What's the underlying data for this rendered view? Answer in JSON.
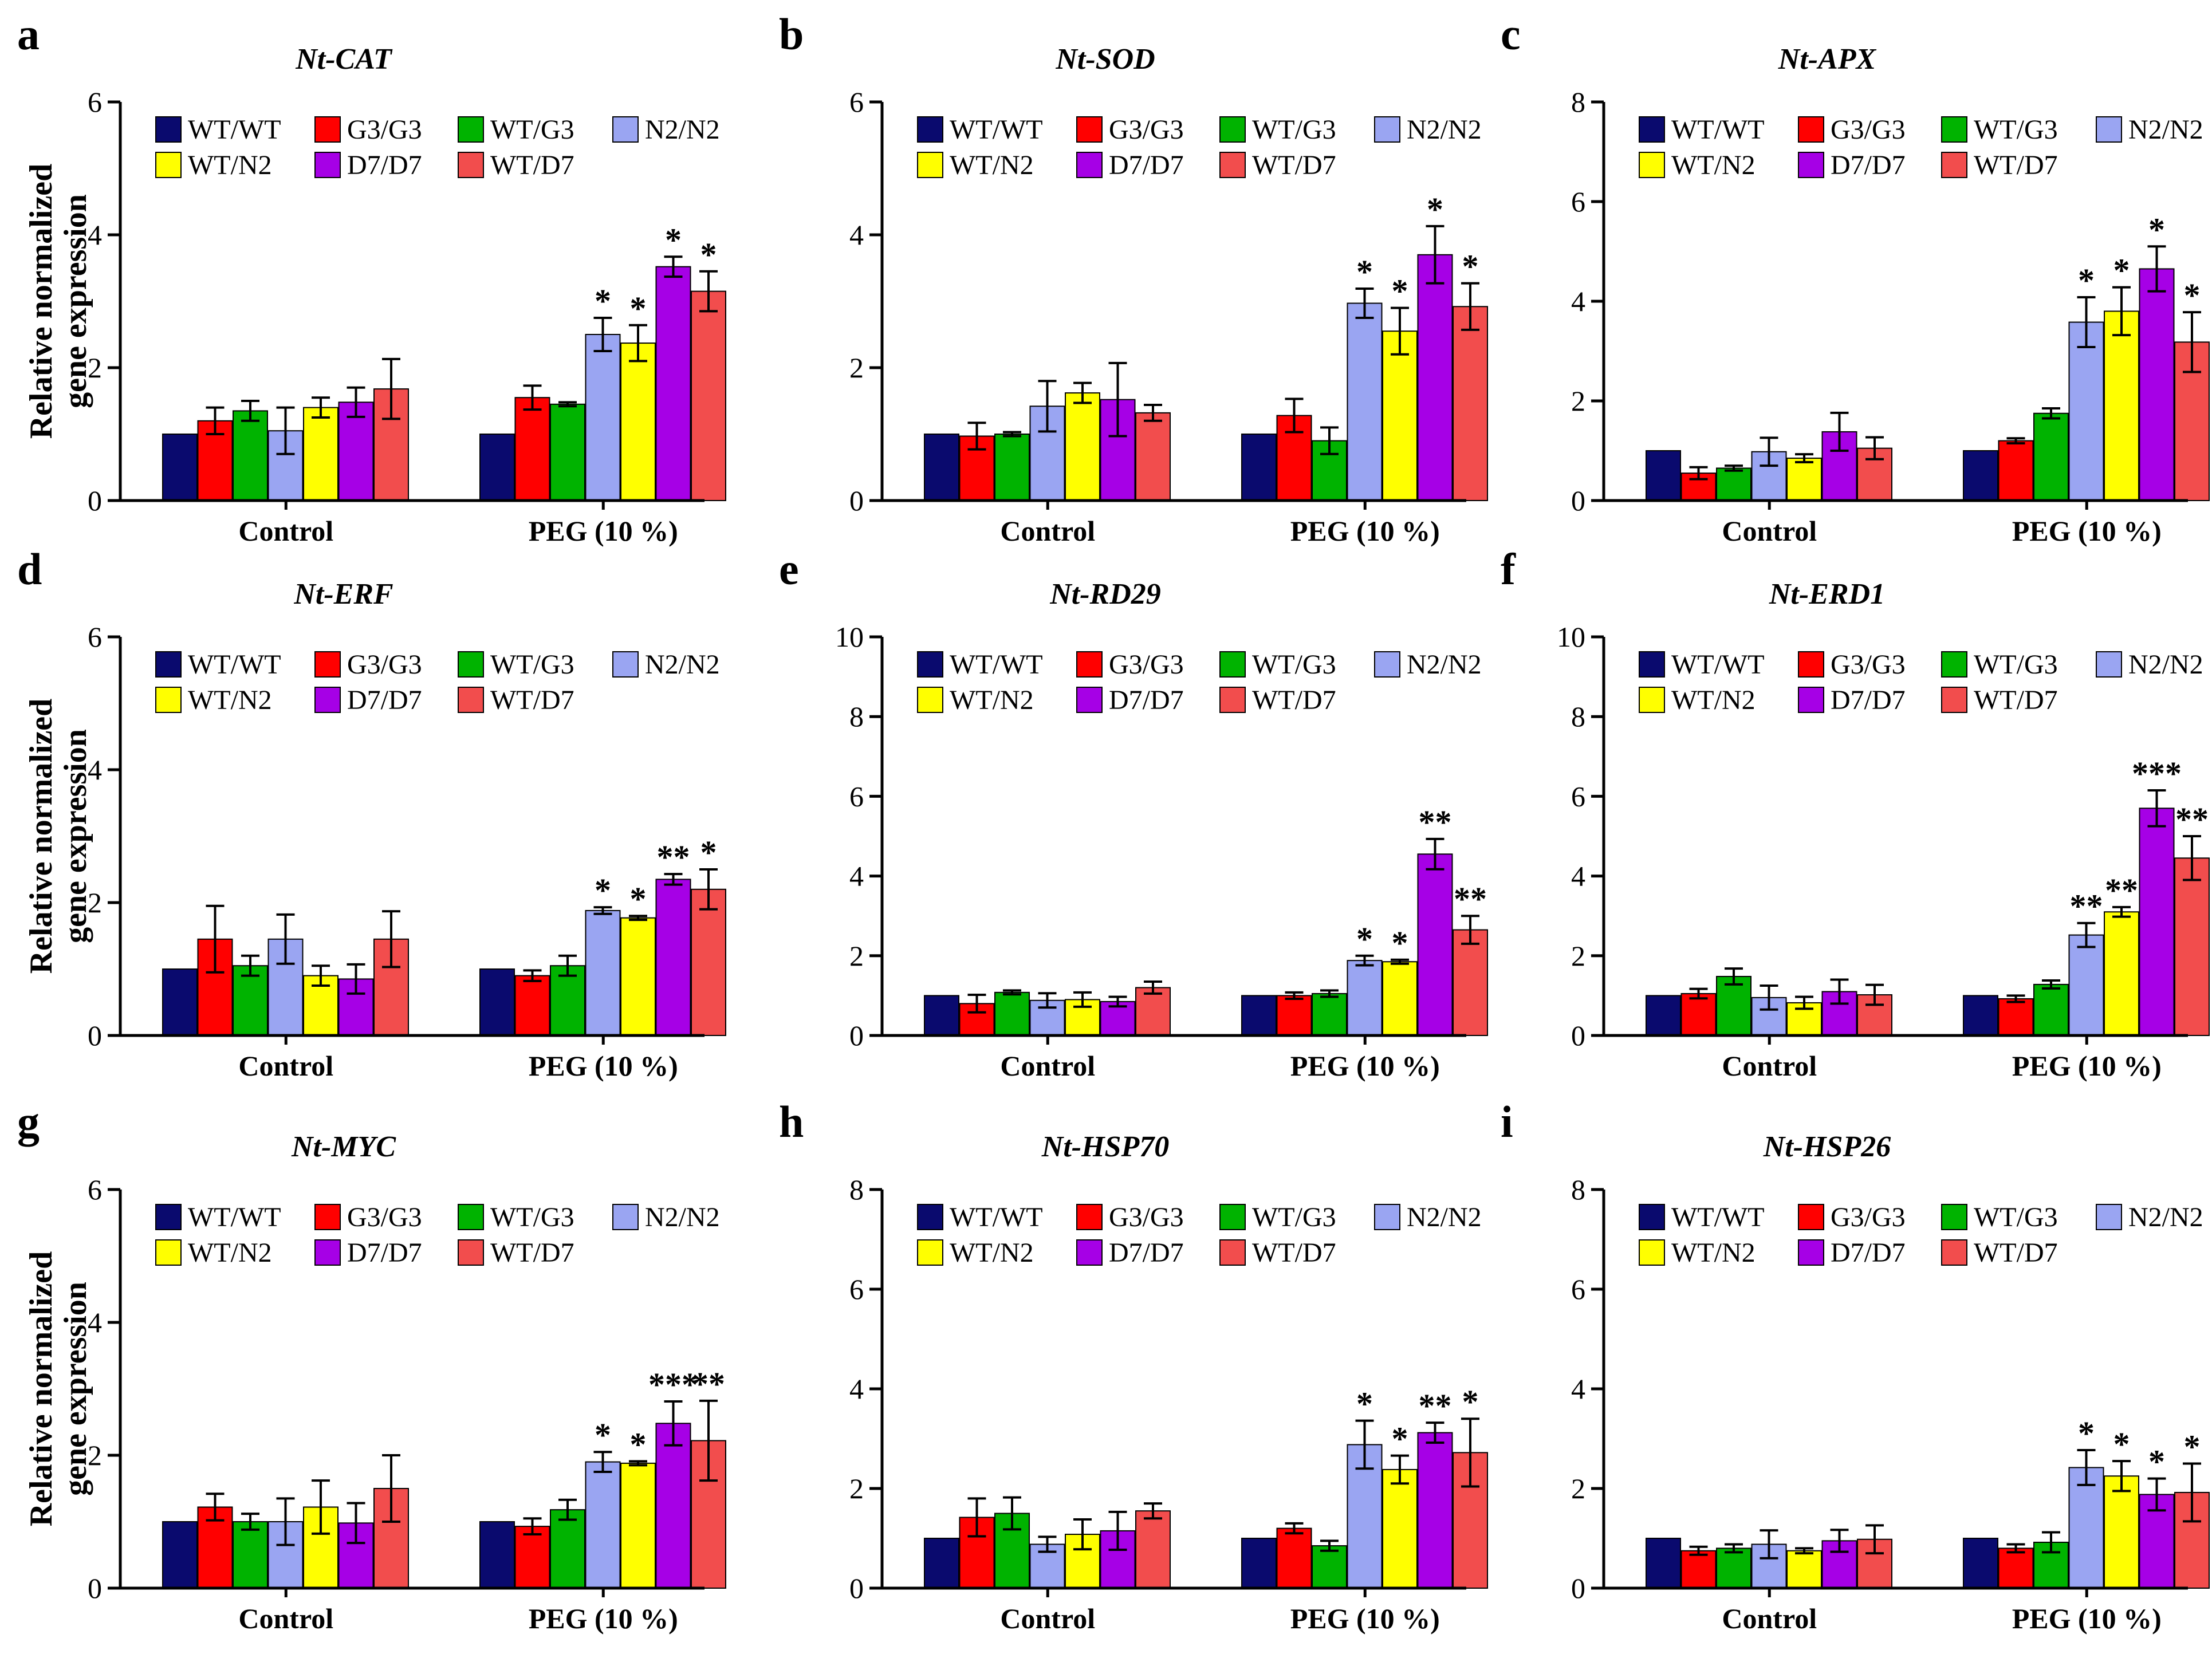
{
  "figure": {
    "group_labels": [
      "Control",
      "PEG (10 %)"
    ],
    "ylabel_line1": "Relative normalized",
    "ylabel_line2": "gene expression",
    "legend_entries": [
      "WT/WT",
      "G3/G3",
      "WT/G3",
      "N2/N2",
      "WT/N2",
      "D7/D7",
      "WT/D7"
    ],
    "series_colors": [
      "#0a0a6e",
      "#ff0000",
      "#00b300",
      "#9aa5f2",
      "#ffff00",
      "#a600e6",
      "#f24d4d"
    ]
  },
  "chart_data": [
    {
      "type": "bar",
      "panel_letter": "a",
      "title": "Nt-CAT",
      "categories": [
        "Control",
        "PEG (10 %)"
      ],
      "ylim": [
        0,
        6
      ],
      "yticks": [
        0,
        2,
        4,
        6
      ],
      "series": [
        {
          "name": "WT/WT",
          "values": [
            1.0,
            1.0
          ],
          "errors": [
            0,
            0
          ],
          "sig": [
            "",
            ""
          ]
        },
        {
          "name": "G3/G3",
          "values": [
            1.2,
            1.55
          ],
          "errors": [
            0.2,
            0.18
          ],
          "sig": [
            "",
            ""
          ]
        },
        {
          "name": "WT/G3",
          "values": [
            1.35,
            1.45
          ],
          "errors": [
            0.15,
            0.03
          ],
          "sig": [
            "",
            ""
          ]
        },
        {
          "name": "N2/N2",
          "values": [
            1.05,
            2.5
          ],
          "errors": [
            0.35,
            0.25
          ],
          "sig": [
            "",
            "*"
          ]
        },
        {
          "name": "WT/N2",
          "values": [
            1.4,
            2.37
          ],
          "errors": [
            0.15,
            0.27
          ],
          "sig": [
            "",
            "*"
          ]
        },
        {
          "name": "D7/D7",
          "values": [
            1.48,
            3.52
          ],
          "errors": [
            0.22,
            0.15
          ],
          "sig": [
            "",
            "*"
          ]
        },
        {
          "name": "WT/D7",
          "values": [
            1.68,
            3.15
          ],
          "errors": [
            0.45,
            0.3
          ],
          "sig": [
            "",
            "*"
          ]
        }
      ]
    },
    {
      "type": "bar",
      "panel_letter": "b",
      "title": "Nt-SOD",
      "categories": [
        "Control",
        "PEG (10 %)"
      ],
      "ylim": [
        0,
        6
      ],
      "yticks": [
        0,
        2,
        4,
        6
      ],
      "series": [
        {
          "name": "WT/WT",
          "values": [
            1.0,
            1.0
          ],
          "errors": [
            0,
            0
          ],
          "sig": [
            "",
            ""
          ]
        },
        {
          "name": "G3/G3",
          "values": [
            0.97,
            1.28
          ],
          "errors": [
            0.2,
            0.25
          ],
          "sig": [
            "",
            ""
          ]
        },
        {
          "name": "WT/G3",
          "values": [
            1.0,
            0.9
          ],
          "errors": [
            0.03,
            0.2
          ],
          "sig": [
            "",
            ""
          ]
        },
        {
          "name": "N2/N2",
          "values": [
            1.42,
            2.97
          ],
          "errors": [
            0.38,
            0.22
          ],
          "sig": [
            "",
            "*"
          ]
        },
        {
          "name": "WT/N2",
          "values": [
            1.62,
            2.55
          ],
          "errors": [
            0.15,
            0.35
          ],
          "sig": [
            "",
            "*"
          ]
        },
        {
          "name": "D7/D7",
          "values": [
            1.52,
            3.7
          ],
          "errors": [
            0.55,
            0.43
          ],
          "sig": [
            "",
            "*"
          ]
        },
        {
          "name": "WT/D7",
          "values": [
            1.32,
            2.92
          ],
          "errors": [
            0.12,
            0.35
          ],
          "sig": [
            "",
            "*"
          ]
        }
      ]
    },
    {
      "type": "bar",
      "panel_letter": "c",
      "title": "Nt-APX",
      "categories": [
        "Control",
        "PEG (10 %)"
      ],
      "ylim": [
        0,
        8
      ],
      "yticks": [
        0,
        2,
        4,
        6,
        8
      ],
      "series": [
        {
          "name": "WT/WT",
          "values": [
            1.0,
            1.0
          ],
          "errors": [
            0,
            0
          ],
          "sig": [
            "",
            ""
          ]
        },
        {
          "name": "G3/G3",
          "values": [
            0.55,
            1.2
          ],
          "errors": [
            0.12,
            0.05
          ],
          "sig": [
            "",
            ""
          ]
        },
        {
          "name": "WT/G3",
          "values": [
            0.65,
            1.75
          ],
          "errors": [
            0.05,
            0.1
          ],
          "sig": [
            "",
            ""
          ]
        },
        {
          "name": "N2/N2",
          "values": [
            0.98,
            3.58
          ],
          "errors": [
            0.28,
            0.5
          ],
          "sig": [
            "",
            "*"
          ]
        },
        {
          "name": "WT/N2",
          "values": [
            0.85,
            3.8
          ],
          "errors": [
            0.08,
            0.48
          ],
          "sig": [
            "",
            "*"
          ]
        },
        {
          "name": "D7/D7",
          "values": [
            1.38,
            4.65
          ],
          "errors": [
            0.38,
            0.45
          ],
          "sig": [
            "",
            "*"
          ]
        },
        {
          "name": "WT/D7",
          "values": [
            1.05,
            3.18
          ],
          "errors": [
            0.22,
            0.6
          ],
          "sig": [
            "",
            "*"
          ]
        }
      ]
    },
    {
      "type": "bar",
      "panel_letter": "d",
      "title": "Nt-ERF",
      "categories": [
        "Control",
        "PEG (10 %)"
      ],
      "ylim": [
        0,
        6
      ],
      "yticks": [
        0,
        2,
        4,
        6
      ],
      "series": [
        {
          "name": "WT/WT",
          "values": [
            1.0,
            1.0
          ],
          "errors": [
            0,
            0
          ],
          "sig": [
            "",
            ""
          ]
        },
        {
          "name": "G3/G3",
          "values": [
            1.45,
            0.9
          ],
          "errors": [
            0.5,
            0.08
          ],
          "sig": [
            "",
            ""
          ]
        },
        {
          "name": "WT/G3",
          "values": [
            1.05,
            1.05
          ],
          "errors": [
            0.15,
            0.15
          ],
          "sig": [
            "",
            ""
          ]
        },
        {
          "name": "N2/N2",
          "values": [
            1.45,
            1.88
          ],
          "errors": [
            0.37,
            0.05
          ],
          "sig": [
            "",
            "*"
          ]
        },
        {
          "name": "WT/N2",
          "values": [
            0.9,
            1.77
          ],
          "errors": [
            0.15,
            0.03
          ],
          "sig": [
            "",
            "*"
          ]
        },
        {
          "name": "D7/D7",
          "values": [
            0.85,
            2.35
          ],
          "errors": [
            0.22,
            0.08
          ],
          "sig": [
            "",
            "**"
          ]
        },
        {
          "name": "WT/D7",
          "values": [
            1.45,
            2.2
          ],
          "errors": [
            0.42,
            0.3
          ],
          "sig": [
            "",
            "*"
          ]
        }
      ]
    },
    {
      "type": "bar",
      "panel_letter": "e",
      "title": "Nt-RD29",
      "categories": [
        "Control",
        "PEG (10 %)"
      ],
      "ylim": [
        0,
        10
      ],
      "yticks": [
        0,
        2,
        4,
        6,
        8,
        10
      ],
      "series": [
        {
          "name": "WT/WT",
          "values": [
            1.0,
            1.0
          ],
          "errors": [
            0,
            0
          ],
          "sig": [
            "",
            ""
          ]
        },
        {
          "name": "G3/G3",
          "values": [
            0.8,
            1.0
          ],
          "errors": [
            0.22,
            0.08
          ],
          "sig": [
            "",
            ""
          ]
        },
        {
          "name": "WT/G3",
          "values": [
            1.08,
            1.05
          ],
          "errors": [
            0.05,
            0.08
          ],
          "sig": [
            "",
            ""
          ]
        },
        {
          "name": "N2/N2",
          "values": [
            0.88,
            1.88
          ],
          "errors": [
            0.18,
            0.12
          ],
          "sig": [
            "",
            "*"
          ]
        },
        {
          "name": "WT/N2",
          "values": [
            0.9,
            1.85
          ],
          "errors": [
            0.18,
            0.05
          ],
          "sig": [
            "",
            "*"
          ]
        },
        {
          "name": "D7/D7",
          "values": [
            0.85,
            4.55
          ],
          "errors": [
            0.12,
            0.38
          ],
          "sig": [
            "",
            "**"
          ]
        },
        {
          "name": "WT/D7",
          "values": [
            1.2,
            2.65
          ],
          "errors": [
            0.15,
            0.35
          ],
          "sig": [
            "",
            "**"
          ]
        }
      ]
    },
    {
      "type": "bar",
      "panel_letter": "f",
      "title": "Nt-ERD1",
      "categories": [
        "Control",
        "PEG (10 %)"
      ],
      "ylim": [
        0,
        10
      ],
      "yticks": [
        0,
        2,
        4,
        6,
        8,
        10
      ],
      "series": [
        {
          "name": "WT/WT",
          "values": [
            1.0,
            1.0
          ],
          "errors": [
            0,
            0
          ],
          "sig": [
            "",
            ""
          ]
        },
        {
          "name": "G3/G3",
          "values": [
            1.05,
            0.92
          ],
          "errors": [
            0.12,
            0.08
          ],
          "sig": [
            "",
            ""
          ]
        },
        {
          "name": "WT/G3",
          "values": [
            1.48,
            1.28
          ],
          "errors": [
            0.2,
            0.1
          ],
          "sig": [
            "",
            ""
          ]
        },
        {
          "name": "N2/N2",
          "values": [
            0.95,
            2.52
          ],
          "errors": [
            0.3,
            0.3
          ],
          "sig": [
            "",
            "**"
          ]
        },
        {
          "name": "WT/N2",
          "values": [
            0.82,
            3.1
          ],
          "errors": [
            0.15,
            0.12
          ],
          "sig": [
            "",
            "**"
          ]
        },
        {
          "name": "D7/D7",
          "values": [
            1.1,
            5.7
          ],
          "errors": [
            0.3,
            0.45
          ],
          "sig": [
            "",
            "***"
          ]
        },
        {
          "name": "WT/D7",
          "values": [
            1.02,
            4.45
          ],
          "errors": [
            0.25,
            0.55
          ],
          "sig": [
            "",
            "**"
          ]
        }
      ]
    },
    {
      "type": "bar",
      "panel_letter": "g",
      "title": "Nt-MYC",
      "categories": [
        "Control",
        "PEG (10 %)"
      ],
      "ylim": [
        0,
        6
      ],
      "yticks": [
        0,
        2,
        4,
        6
      ],
      "series": [
        {
          "name": "WT/WT",
          "values": [
            1.0,
            1.0
          ],
          "errors": [
            0,
            0
          ],
          "sig": [
            "",
            ""
          ]
        },
        {
          "name": "G3/G3",
          "values": [
            1.22,
            0.93
          ],
          "errors": [
            0.2,
            0.12
          ],
          "sig": [
            "",
            ""
          ]
        },
        {
          "name": "WT/G3",
          "values": [
            1.0,
            1.18
          ],
          "errors": [
            0.12,
            0.15
          ],
          "sig": [
            "",
            ""
          ]
        },
        {
          "name": "N2/N2",
          "values": [
            1.0,
            1.9
          ],
          "errors": [
            0.35,
            0.15
          ],
          "sig": [
            "",
            "*"
          ]
        },
        {
          "name": "WT/N2",
          "values": [
            1.22,
            1.88
          ],
          "errors": [
            0.4,
            0.03
          ],
          "sig": [
            "",
            "*"
          ]
        },
        {
          "name": "D7/D7",
          "values": [
            0.98,
            2.48
          ],
          "errors": [
            0.3,
            0.33
          ],
          "sig": [
            "",
            "***"
          ]
        },
        {
          "name": "WT/D7",
          "values": [
            1.5,
            2.22
          ],
          "errors": [
            0.5,
            0.6
          ],
          "sig": [
            "",
            "**"
          ]
        }
      ]
    },
    {
      "type": "bar",
      "panel_letter": "h",
      "title": "Nt-HSP70",
      "categories": [
        "Control",
        "PEG (10 %)"
      ],
      "ylim": [
        0,
        8
      ],
      "yticks": [
        0,
        2,
        4,
        6,
        8
      ],
      "series": [
        {
          "name": "WT/WT",
          "values": [
            1.0,
            1.0
          ],
          "errors": [
            0,
            0
          ],
          "sig": [
            "",
            ""
          ]
        },
        {
          "name": "G3/G3",
          "values": [
            1.42,
            1.2
          ],
          "errors": [
            0.38,
            0.1
          ],
          "sig": [
            "",
            ""
          ]
        },
        {
          "name": "WT/G3",
          "values": [
            1.5,
            0.85
          ],
          "errors": [
            0.32,
            0.1
          ],
          "sig": [
            "",
            ""
          ]
        },
        {
          "name": "N2/N2",
          "values": [
            0.88,
            2.88
          ],
          "errors": [
            0.15,
            0.48
          ],
          "sig": [
            "",
            "*"
          ]
        },
        {
          "name": "WT/N2",
          "values": [
            1.08,
            2.38
          ],
          "errors": [
            0.3,
            0.28
          ],
          "sig": [
            "",
            "*"
          ]
        },
        {
          "name": "D7/D7",
          "values": [
            1.15,
            3.12
          ],
          "errors": [
            0.38,
            0.2
          ],
          "sig": [
            "",
            "**"
          ]
        },
        {
          "name": "WT/D7",
          "values": [
            1.55,
            2.72
          ],
          "errors": [
            0.15,
            0.68
          ],
          "sig": [
            "",
            "*"
          ]
        }
      ]
    },
    {
      "type": "bar",
      "panel_letter": "i",
      "title": "Nt-HSP26",
      "categories": [
        "Control",
        "PEG (10 %)"
      ],
      "ylim": [
        0,
        8
      ],
      "yticks": [
        0,
        2,
        4,
        6,
        8
      ],
      "series": [
        {
          "name": "WT/WT",
          "values": [
            1.0,
            1.0
          ],
          "errors": [
            0,
            0
          ],
          "sig": [
            "",
            ""
          ]
        },
        {
          "name": "G3/G3",
          "values": [
            0.75,
            0.8
          ],
          "errors": [
            0.08,
            0.08
          ],
          "sig": [
            "",
            ""
          ]
        },
        {
          "name": "WT/G3",
          "values": [
            0.8,
            0.92
          ],
          "errors": [
            0.08,
            0.2
          ],
          "sig": [
            "",
            ""
          ]
        },
        {
          "name": "N2/N2",
          "values": [
            0.88,
            2.42
          ],
          "errors": [
            0.28,
            0.35
          ],
          "sig": [
            "",
            "*"
          ]
        },
        {
          "name": "WT/N2",
          "values": [
            0.75,
            2.25
          ],
          "errors": [
            0.05,
            0.3
          ],
          "sig": [
            "",
            "*"
          ]
        },
        {
          "name": "D7/D7",
          "values": [
            0.95,
            1.88
          ],
          "errors": [
            0.22,
            0.32
          ],
          "sig": [
            "",
            "*"
          ]
        },
        {
          "name": "WT/D7",
          "values": [
            0.98,
            1.92
          ],
          "errors": [
            0.28,
            0.58
          ],
          "sig": [
            "",
            "*"
          ]
        }
      ]
    }
  ]
}
